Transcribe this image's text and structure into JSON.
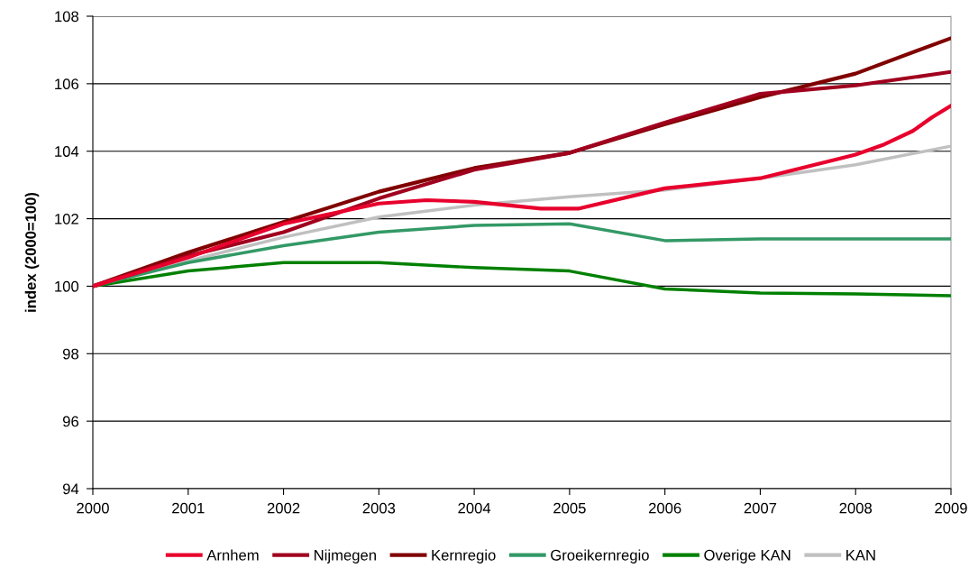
{
  "chart_data": {
    "type": "line",
    "ylabel": "index (2000=100)",
    "xlim": [
      2000,
      2009
    ],
    "xticks": [
      2000,
      2001,
      2002,
      2003,
      2004,
      2005,
      2006,
      2007,
      2008,
      2009
    ],
    "ylim": [
      94,
      108
    ],
    "yticks": [
      94,
      96,
      98,
      100,
      102,
      104,
      106,
      108
    ],
    "grid": "y",
    "legend": "bottom",
    "marker": "none",
    "line_style": "solid",
    "x": [
      2000,
      2001,
      2002,
      2003,
      2004,
      2005,
      2006,
      2007,
      2008,
      2009
    ],
    "series": [
      {
        "name": "Arnhem",
        "color": "#e8002d",
        "x": [
          2000,
          2001,
          2002,
          2003,
          2003.5,
          2004,
          2004.7,
          2005,
          2005.1,
          2006,
          2007,
          2008,
          2008.3,
          2008.6,
          2008.8,
          2009
        ],
        "values": [
          100,
          100.85,
          101.85,
          102.45,
          102.55,
          102.5,
          102.3,
          102.3,
          102.3,
          102.9,
          103.2,
          103.9,
          104.2,
          104.6,
          105.0,
          105.35
        ]
      },
      {
        "name": "Nijmegen",
        "color": "#a0001e",
        "values": [
          100,
          100.9,
          101.6,
          102.6,
          103.45,
          103.95,
          104.85,
          105.7,
          105.95,
          106.35
        ]
      },
      {
        "name": "Kernregio",
        "color": "#800000",
        "values": [
          100,
          101.0,
          101.9,
          102.8,
          103.5,
          103.95,
          104.8,
          105.6,
          106.3,
          107.35
        ]
      },
      {
        "name": "Groeikernregio",
        "color": "#339966",
        "values": [
          100,
          100.7,
          101.2,
          101.6,
          101.8,
          101.85,
          101.35,
          101.4,
          101.4,
          101.4
        ]
      },
      {
        "name": "Overige KAN",
        "color": "#008000",
        "values": [
          100,
          100.45,
          100.7,
          100.7,
          100.55,
          100.45,
          99.92,
          99.8,
          99.77,
          99.72
        ]
      },
      {
        "name": "KAN",
        "color": "#c0c0c0",
        "values": [
          100,
          100.75,
          101.45,
          102.05,
          102.4,
          102.65,
          102.85,
          103.2,
          103.6,
          104.15
        ]
      }
    ]
  }
}
